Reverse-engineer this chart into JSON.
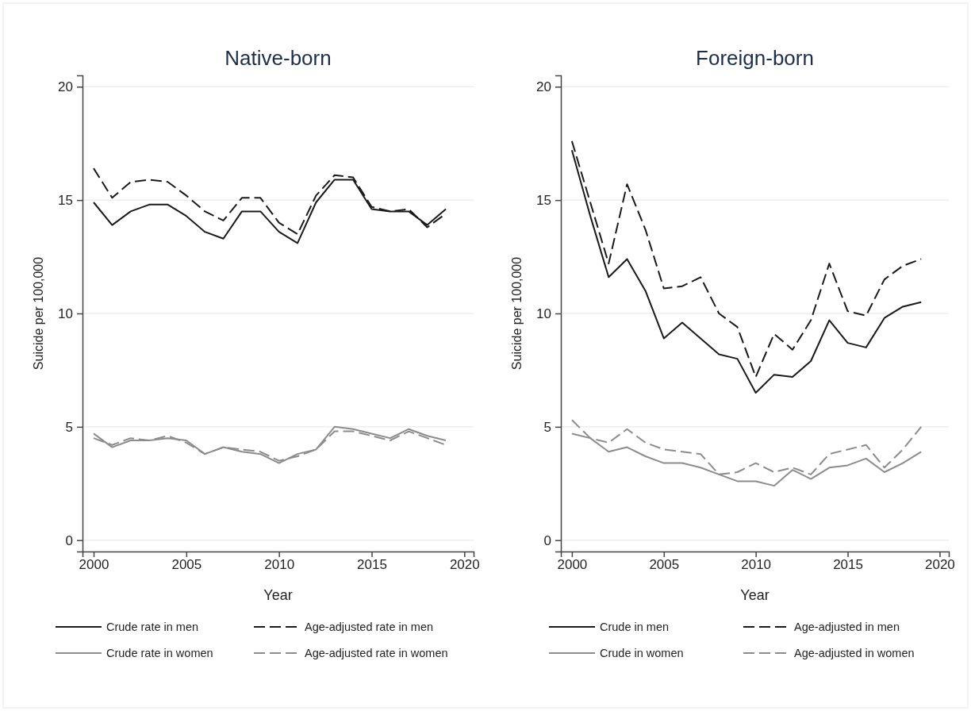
{
  "chart_data": [
    {
      "type": "line",
      "title": "Native-born",
      "xlabel": "Year",
      "ylabel": "Suicide per 100,000",
      "x": [
        2000,
        2001,
        2002,
        2003,
        2004,
        2005,
        2006,
        2007,
        2008,
        2009,
        2010,
        2011,
        2012,
        2013,
        2014,
        2015,
        2016,
        2017,
        2018,
        2019
      ],
      "series": [
        {
          "name": "Crude rate in men",
          "color": "#1a1a1a",
          "line_style": "solid",
          "values": [
            14.9,
            13.9,
            14.5,
            14.8,
            14.8,
            14.3,
            13.6,
            13.3,
            14.5,
            14.5,
            13.6,
            13.1,
            14.9,
            15.9,
            15.9,
            14.6,
            14.5,
            14.5,
            13.9,
            14.6
          ]
        },
        {
          "name": "Age-adjusted rate in men",
          "color": "#1a1a1a",
          "line_style": "dashed",
          "values": [
            16.4,
            15.1,
            15.8,
            15.9,
            15.8,
            15.2,
            14.5,
            14.1,
            15.1,
            15.1,
            14.0,
            13.5,
            15.2,
            16.1,
            16.0,
            14.7,
            14.5,
            14.6,
            13.8,
            14.4
          ]
        },
        {
          "name": "Crude rate in women",
          "color": "#8c8c8c",
          "line_style": "solid",
          "values": [
            4.7,
            4.1,
            4.4,
            4.4,
            4.5,
            4.4,
            3.8,
            4.1,
            3.9,
            3.8,
            3.4,
            3.8,
            4.0,
            5.0,
            4.9,
            4.7,
            4.5,
            4.9,
            4.6,
            4.4
          ]
        },
        {
          "name": "Age-adjusted rate in women",
          "color": "#8c8c8c",
          "line_style": "dashed",
          "values": [
            4.5,
            4.2,
            4.5,
            4.4,
            4.6,
            4.3,
            3.8,
            4.1,
            4.0,
            3.9,
            3.5,
            3.7,
            4.0,
            4.8,
            4.8,
            4.6,
            4.4,
            4.8,
            4.5,
            4.2
          ]
        }
      ],
      "xlim": [
        1999.4,
        2020.5
      ],
      "ylim": [
        -0.5,
        20.5
      ],
      "xticks": [
        2000,
        2005,
        2010,
        2015,
        2020
      ],
      "yticks": [
        0,
        5,
        10,
        15,
        20
      ],
      "grid": "y",
      "legend": "bottom",
      "marker": "none"
    },
    {
      "type": "line",
      "title": "Foreign-born",
      "xlabel": "Year",
      "ylabel": "Suicide per 100,000",
      "x": [
        2000,
        2001,
        2002,
        2003,
        2004,
        2005,
        2006,
        2007,
        2008,
        2009,
        2010,
        2011,
        2012,
        2013,
        2014,
        2015,
        2016,
        2017,
        2018,
        2019
      ],
      "series": [
        {
          "name": "Crude in men",
          "color": "#1a1a1a",
          "line_style": "solid",
          "values": [
            17.2,
            14.3,
            11.6,
            12.4,
            11.0,
            8.9,
            9.6,
            8.9,
            8.2,
            8.0,
            6.5,
            7.3,
            7.2,
            7.9,
            9.7,
            8.7,
            8.5,
            9.8,
            10.3,
            10.5
          ]
        },
        {
          "name": "Age-adjusted in men",
          "color": "#1a1a1a",
          "line_style": "dashed",
          "values": [
            17.6,
            14.9,
            12.2,
            15.7,
            13.7,
            11.1,
            11.2,
            11.6,
            10.0,
            9.4,
            7.2,
            9.1,
            8.4,
            9.7,
            12.2,
            10.1,
            9.9,
            11.5,
            12.1,
            12.4
          ]
        },
        {
          "name": "Crude in women",
          "color": "#8c8c8c",
          "line_style": "solid",
          "values": [
            4.7,
            4.5,
            3.9,
            4.1,
            3.7,
            3.4,
            3.4,
            3.2,
            2.9,
            2.6,
            2.6,
            2.4,
            3.1,
            2.7,
            3.2,
            3.3,
            3.6,
            3.0,
            3.4,
            3.9
          ]
        },
        {
          "name": "Age-adjusted in women",
          "color": "#8c8c8c",
          "line_style": "dashed",
          "values": [
            5.3,
            4.5,
            4.3,
            4.9,
            4.3,
            4.0,
            3.9,
            3.8,
            2.9,
            3.0,
            3.4,
            3.0,
            3.2,
            2.9,
            3.8,
            4.0,
            4.2,
            3.2,
            4.0,
            5.0
          ]
        }
      ],
      "xlim": [
        1999.4,
        2020.5
      ],
      "ylim": [
        -0.5,
        20.5
      ],
      "xticks": [
        2000,
        2005,
        2010,
        2015,
        2020
      ],
      "yticks": [
        0,
        5,
        10,
        15,
        20
      ],
      "grid": "y",
      "legend": "bottom",
      "marker": "none"
    }
  ]
}
